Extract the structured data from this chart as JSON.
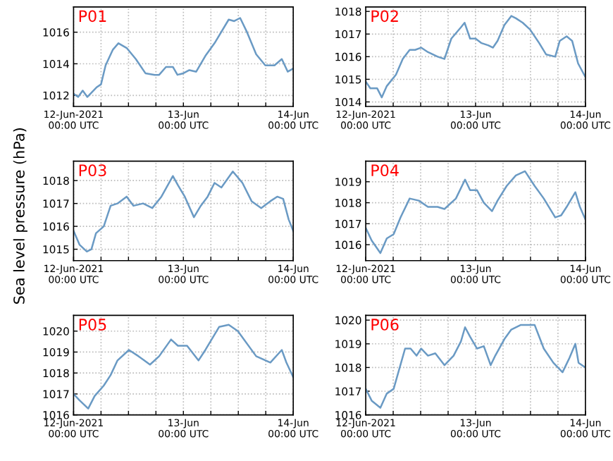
{
  "chart_data": [
    {
      "type": "line",
      "title": "P01",
      "x": [
        "2021-06-12T00:00",
        "2021-06-12T01:00",
        "2021-06-12T02:00",
        "2021-06-12T03:00",
        "2021-06-12T04:00",
        "2021-06-12T05:00",
        "2021-06-12T06:00",
        "2021-06-12T07:00",
        "2021-06-12T08:36",
        "2021-06-12T09:48",
        "2021-06-12T11:36",
        "2021-06-12T13:36",
        "2021-06-12T15:42",
        "2021-06-12T17:42",
        "2021-06-12T18:42",
        "2021-06-12T20:12",
        "2021-06-12T21:42",
        "2021-06-12T22:42",
        "2021-06-13T00:00",
        "2021-06-13T01:18",
        "2021-06-13T02:48",
        "2021-06-13T04:48",
        "2021-06-13T06:48",
        "2021-06-13T09:54",
        "2021-06-13T11:06",
        "2021-06-13T12:24",
        "2021-06-13T13:54",
        "2021-06-13T15:54",
        "2021-06-13T17:54",
        "2021-06-13T19:54",
        "2021-06-13T21:30",
        "2021-06-13T22:48",
        "2021-06-14T00:00"
      ],
      "series": [
        {
          "color": "#6a9ac4",
          "values": [
            1012.1,
            1011.9,
            1012.3,
            1011.9,
            1012.2,
            1012.5,
            1012.7,
            1013.9,
            1014.9,
            1015.3,
            1015.0,
            1014.3,
            1013.4,
            1013.3,
            1013.3,
            1013.8,
            1013.8,
            1013.3,
            1013.4,
            1013.6,
            1013.5,
            1014.5,
            1015.3,
            1016.8,
            1016.7,
            1016.9,
            1016.0,
            1014.6,
            1013.9,
            1013.9,
            1014.3,
            1013.5,
            1013.7
          ]
        }
      ],
      "xlim": [
        "2021-06-12T00:00",
        "2021-06-14T00:00"
      ],
      "xticks": [
        {
          "value": "2021-06-12T00:00",
          "label": "12-Jun-2021\n00:00 UTC"
        },
        {
          "value": "2021-06-12T06:00",
          "label": null
        },
        {
          "value": "2021-06-12T12:00",
          "label": null
        },
        {
          "value": "2021-06-12T18:00",
          "label": null
        },
        {
          "value": "2021-06-13T00:00",
          "label": "13-Jun\n00:00 UTC"
        },
        {
          "value": "2021-06-13T06:00",
          "label": null
        },
        {
          "value": "2021-06-13T12:00",
          "label": null
        },
        {
          "value": "2021-06-13T18:00",
          "label": null
        },
        {
          "value": "2021-06-14T00:00",
          "label": "14-Jun\n00:00 UTC"
        }
      ],
      "ylim": [
        1011.3,
        1017.6
      ],
      "yticks": [
        1012,
        1014,
        1016
      ],
      "grid": true
    },
    {
      "type": "line",
      "title": "P02",
      "x": [
        "2021-06-12T00:00",
        "2021-06-12T01:00",
        "2021-06-12T02:30",
        "2021-06-12T03:30",
        "2021-06-12T04:36",
        "2021-06-12T06:36",
        "2021-06-12T08:06",
        "2021-06-12T09:36",
        "2021-06-12T10:48",
        "2021-06-12T12:06",
        "2021-06-12T13:36",
        "2021-06-12T15:42",
        "2021-06-12T17:12",
        "2021-06-12T18:42",
        "2021-06-12T20:48",
        "2021-06-12T21:36",
        "2021-06-12T22:48",
        "2021-06-13T00:00",
        "2021-06-13T01:18",
        "2021-06-13T02:48",
        "2021-06-13T03:48",
        "2021-06-13T04:48",
        "2021-06-13T06:18",
        "2021-06-13T07:48",
        "2021-06-13T08:48",
        "2021-06-13T10:18",
        "2021-06-13T11:54",
        "2021-06-13T13:54",
        "2021-06-13T15:24",
        "2021-06-13T17:24",
        "2021-06-13T18:24",
        "2021-06-13T19:54",
        "2021-06-13T21:06",
        "2021-06-13T22:24",
        "2021-06-14T00:00"
      ],
      "series": [
        {
          "color": "#6a9ac4",
          "values": [
            1014.9,
            1014.6,
            1014.6,
            1014.2,
            1014.7,
            1015.2,
            1015.9,
            1016.3,
            1016.3,
            1016.4,
            1016.2,
            1016.0,
            1015.9,
            1016.8,
            1017.3,
            1017.5,
            1016.8,
            1016.8,
            1016.6,
            1016.5,
            1016.4,
            1016.7,
            1017.4,
            1017.8,
            1017.7,
            1017.5,
            1017.2,
            1016.6,
            1016.1,
            1016.0,
            1016.7,
            1016.9,
            1016.7,
            1015.7,
            1015.1
          ]
        }
      ],
      "xlim": [
        "2021-06-12T00:00",
        "2021-06-14T00:00"
      ],
      "xticks": [
        {
          "value": "2021-06-12T00:00",
          "label": "12-Jun-2021\n00:00 UTC"
        },
        {
          "value": "2021-06-12T06:00",
          "label": null
        },
        {
          "value": "2021-06-12T12:00",
          "label": null
        },
        {
          "value": "2021-06-12T18:00",
          "label": null
        },
        {
          "value": "2021-06-13T00:00",
          "label": "13-Jun\n00:00 UTC"
        },
        {
          "value": "2021-06-13T06:00",
          "label": null
        },
        {
          "value": "2021-06-13T12:00",
          "label": null
        },
        {
          "value": "2021-06-13T18:00",
          "label": null
        },
        {
          "value": "2021-06-14T00:00",
          "label": "14-Jun\n00:00 UTC"
        }
      ],
      "ylim": [
        1013.8,
        1018.2
      ],
      "yticks": [
        1014,
        1015,
        1016,
        1017,
        1018
      ],
      "grid": true
    },
    {
      "type": "line",
      "title": "P03",
      "ylabel": "Sea level pressure (hPa)",
      "x": [
        "2021-06-12T00:00",
        "2021-06-12T01:18",
        "2021-06-12T02:54",
        "2021-06-12T03:54",
        "2021-06-12T04:54",
        "2021-06-12T06:36",
        "2021-06-12T08:06",
        "2021-06-12T09:36",
        "2021-06-12T11:36",
        "2021-06-12T13:06",
        "2021-06-12T15:12",
        "2021-06-12T17:12",
        "2021-06-12T19:12",
        "2021-06-12T21:42",
        "2021-06-12T22:48",
        "2021-06-13T00:18",
        "2021-06-13T02:18",
        "2021-06-13T03:48",
        "2021-06-13T05:18",
        "2021-06-13T06:48",
        "2021-06-13T08:18",
        "2021-06-13T10:48",
        "2021-06-13T12:54",
        "2021-06-13T14:54",
        "2021-06-13T17:00",
        "2021-06-13T19:00",
        "2021-06-13T20:30",
        "2021-06-13T21:48",
        "2021-06-13T23:00",
        "2021-06-14T00:00"
      ],
      "series": [
        {
          "color": "#6a9ac4",
          "values": [
            1015.8,
            1015.2,
            1014.9,
            1015.0,
            1015.7,
            1016.0,
            1016.9,
            1017.0,
            1017.3,
            1016.9,
            1017.0,
            1016.8,
            1017.3,
            1018.2,
            1017.8,
            1017.3,
            1016.4,
            1016.9,
            1017.3,
            1017.9,
            1017.7,
            1018.4,
            1017.9,
            1017.1,
            1016.8,
            1017.1,
            1017.3,
            1017.2,
            1016.3,
            1015.8
          ]
        }
      ],
      "xlim": [
        "2021-06-12T00:00",
        "2021-06-14T00:00"
      ],
      "xticks": [
        {
          "value": "2021-06-12T00:00",
          "label": "12-Jun-2021\n00:00 UTC"
        },
        {
          "value": "2021-06-12T06:00",
          "label": null
        },
        {
          "value": "2021-06-12T12:00",
          "label": null
        },
        {
          "value": "2021-06-12T18:00",
          "label": null
        },
        {
          "value": "2021-06-13T00:00",
          "label": "13-Jun\n00:00 UTC"
        },
        {
          "value": "2021-06-13T06:00",
          "label": null
        },
        {
          "value": "2021-06-13T12:00",
          "label": null
        },
        {
          "value": "2021-06-13T18:00",
          "label": null
        },
        {
          "value": "2021-06-14T00:00",
          "label": "14-Jun\n00:00 UTC"
        }
      ],
      "ylim": [
        1014.5,
        1018.85
      ],
      "yticks": [
        1015,
        1016,
        1017,
        1018
      ],
      "grid": true
    },
    {
      "type": "line",
      "title": "P04",
      "x": [
        "2021-06-12T00:00",
        "2021-06-12T01:18",
        "2021-06-12T03:12",
        "2021-06-12T04:36",
        "2021-06-12T06:06",
        "2021-06-12T07:36",
        "2021-06-12T09:36",
        "2021-06-12T11:36",
        "2021-06-12T13:36",
        "2021-06-12T15:42",
        "2021-06-12T17:12",
        "2021-06-12T19:42",
        "2021-06-12T21:42",
        "2021-06-12T22:48",
        "2021-06-13T00:18",
        "2021-06-13T01:48",
        "2021-06-13T03:36",
        "2021-06-13T04:48",
        "2021-06-13T06:48",
        "2021-06-13T08:48",
        "2021-06-13T10:48",
        "2021-06-13T12:54",
        "2021-06-13T14:54",
        "2021-06-13T17:24",
        "2021-06-13T18:42",
        "2021-06-13T19:54",
        "2021-06-13T21:48",
        "2021-06-13T22:48",
        "2021-06-14T00:00"
      ],
      "series": [
        {
          "color": "#6a9ac4",
          "values": [
            1016.8,
            1016.2,
            1015.6,
            1016.3,
            1016.5,
            1017.3,
            1018.2,
            1018.1,
            1017.8,
            1017.8,
            1017.7,
            1018.2,
            1019.1,
            1018.6,
            1018.6,
            1018.0,
            1017.6,
            1018.1,
            1018.8,
            1019.3,
            1019.5,
            1018.8,
            1018.2,
            1017.3,
            1017.4,
            1017.8,
            1018.5,
            1017.8,
            1017.2
          ]
        }
      ],
      "xlim": [
        "2021-06-12T00:00",
        "2021-06-14T00:00"
      ],
      "xticks": [
        {
          "value": "2021-06-12T00:00",
          "label": "12-Jun-2021\n00:00 UTC"
        },
        {
          "value": "2021-06-12T06:00",
          "label": null
        },
        {
          "value": "2021-06-12T12:00",
          "label": null
        },
        {
          "value": "2021-06-12T18:00",
          "label": null
        },
        {
          "value": "2021-06-13T00:00",
          "label": "13-Jun\n00:00 UTC"
        },
        {
          "value": "2021-06-13T06:00",
          "label": null
        },
        {
          "value": "2021-06-13T12:00",
          "label": null
        },
        {
          "value": "2021-06-13T18:00",
          "label": null
        },
        {
          "value": "2021-06-14T00:00",
          "label": "14-Jun\n00:00 UTC"
        }
      ],
      "ylim": [
        1015.24,
        1019.98
      ],
      "yticks": [
        1016,
        1017,
        1018,
        1019
      ],
      "grid": true
    },
    {
      "type": "line",
      "title": "P05",
      "x": [
        "2021-06-12T00:00",
        "2021-06-12T01:18",
        "2021-06-12T03:12",
        "2021-06-12T04:36",
        "2021-06-12T06:36",
        "2021-06-12T08:06",
        "2021-06-12T09:36",
        "2021-06-12T12:06",
        "2021-06-12T14:12",
        "2021-06-12T16:42",
        "2021-06-12T18:42",
        "2021-06-12T21:18",
        "2021-06-12T22:48",
        "2021-06-13T00:48",
        "2021-06-13T03:18",
        "2021-06-13T04:48",
        "2021-06-13T07:48",
        "2021-06-13T09:54",
        "2021-06-13T11:54",
        "2021-06-13T15:54",
        "2021-06-13T19:00",
        "2021-06-13T21:30",
        "2021-06-13T22:30",
        "2021-06-14T00:00"
      ],
      "series": [
        {
          "color": "#6a9ac4",
          "values": [
            1017.0,
            1016.7,
            1016.3,
            1016.9,
            1017.4,
            1017.9,
            1018.6,
            1019.1,
            1018.8,
            1018.4,
            1018.8,
            1019.6,
            1019.3,
            1019.3,
            1018.6,
            1019.1,
            1020.2,
            1020.3,
            1020.0,
            1018.8,
            1018.5,
            1019.1,
            1018.5,
            1017.8
          ]
        }
      ],
      "xlim": [
        "2021-06-12T00:00",
        "2021-06-14T00:00"
      ],
      "xticks": [
        {
          "value": "2021-06-12T00:00",
          "label": "12-Jun-2021\n00:00 UTC"
        },
        {
          "value": "2021-06-12T06:00",
          "label": null
        },
        {
          "value": "2021-06-12T12:00",
          "label": null
        },
        {
          "value": "2021-06-12T18:00",
          "label": null
        },
        {
          "value": "2021-06-13T00:00",
          "label": "13-Jun\n00:00 UTC"
        },
        {
          "value": "2021-06-13T06:00",
          "label": null
        },
        {
          "value": "2021-06-13T12:00",
          "label": null
        },
        {
          "value": "2021-06-13T18:00",
          "label": null
        },
        {
          "value": "2021-06-14T00:00",
          "label": "14-Jun\n00:00 UTC"
        }
      ],
      "ylim": [
        1016,
        1020.75
      ],
      "yticks": [
        1016,
        1017,
        1018,
        1019,
        1020
      ],
      "grid": true
    },
    {
      "type": "line",
      "title": "P06",
      "x": [
        "2021-06-12T00:00",
        "2021-06-12T01:18",
        "2021-06-12T03:12",
        "2021-06-12T04:36",
        "2021-06-12T06:06",
        "2021-06-12T08:36",
        "2021-06-12T09:48",
        "2021-06-12T11:06",
        "2021-06-12T12:06",
        "2021-06-12T13:36",
        "2021-06-12T15:12",
        "2021-06-12T17:12",
        "2021-06-12T19:12",
        "2021-06-12T20:48",
        "2021-06-12T21:42",
        "2021-06-12T22:48",
        "2021-06-13T00:18",
        "2021-06-13T01:48",
        "2021-06-13T03:18",
        "2021-06-13T04:18",
        "2021-06-13T06:18",
        "2021-06-13T07:48",
        "2021-06-13T09:54",
        "2021-06-13T12:54",
        "2021-06-13T14:54",
        "2021-06-13T17:00",
        "2021-06-13T19:00",
        "2021-06-13T20:30",
        "2021-06-13T21:48",
        "2021-06-13T22:30",
        "2021-06-14T00:00"
      ],
      "series": [
        {
          "color": "#6a9ac4",
          "values": [
            1017.1,
            1016.6,
            1016.3,
            1016.9,
            1017.1,
            1018.8,
            1018.8,
            1018.5,
            1018.8,
            1018.5,
            1018.6,
            1018.1,
            1018.5,
            1019.1,
            1019.7,
            1019.3,
            1018.8,
            1018.9,
            1018.1,
            1018.5,
            1019.2,
            1019.6,
            1019.8,
            1019.8,
            1018.8,
            1018.2,
            1017.8,
            1018.4,
            1019.0,
            1018.2,
            1018.0
          ]
        }
      ],
      "xlim": [
        "2021-06-12T00:00",
        "2021-06-14T00:00"
      ],
      "xticks": [
        {
          "value": "2021-06-12T00:00",
          "label": "12-Jun-2021\n00:00 UTC"
        },
        {
          "value": "2021-06-12T06:00",
          "label": null
        },
        {
          "value": "2021-06-12T12:00",
          "label": null
        },
        {
          "value": "2021-06-12T18:00",
          "label": null
        },
        {
          "value": "2021-06-13T00:00",
          "label": "13-Jun\n00:00 UTC"
        },
        {
          "value": "2021-06-13T06:00",
          "label": null
        },
        {
          "value": "2021-06-13T12:00",
          "label": null
        },
        {
          "value": "2021-06-13T18:00",
          "label": null
        },
        {
          "value": "2021-06-14T00:00",
          "label": "14-Jun\n00:00 UTC"
        }
      ],
      "ylim": [
        1016,
        1020.2
      ],
      "yticks": [
        1016,
        1017,
        1018,
        1019,
        1020
      ],
      "grid": true
    }
  ]
}
